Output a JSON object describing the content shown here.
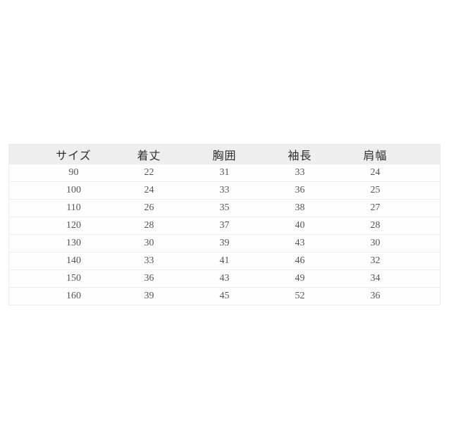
{
  "page": {
    "background": "#ffffff"
  },
  "table": {
    "headers": [
      "サイズ",
      "着丈",
      "胸囲",
      "袖長",
      "肩幅"
    ],
    "rows": [
      [
        "90",
        "22",
        "31",
        "33",
        "24"
      ],
      [
        "100",
        "24",
        "33",
        "36",
        "25"
      ],
      [
        "110",
        "26",
        "35",
        "38",
        "27"
      ],
      [
        "120",
        "28",
        "37",
        "40",
        "28"
      ],
      [
        "130",
        "30",
        "39",
        "43",
        "30"
      ],
      [
        "140",
        "33",
        "41",
        "46",
        "32"
      ],
      [
        "150",
        "36",
        "43",
        "49",
        "34"
      ],
      [
        "160",
        "39",
        "45",
        "52",
        "36"
      ]
    ],
    "colors": {
      "header_bg": "#eeeeee",
      "header_text": "#2e2e2e",
      "cell_text": "#555555",
      "border": "#ededed"
    }
  },
  "chart_data": {
    "type": "table",
    "columns": [
      "サイズ",
      "着丈",
      "胸囲",
      "袖長",
      "肩幅"
    ],
    "rows": [
      [
        90,
        22,
        31,
        33,
        24
      ],
      [
        100,
        24,
        33,
        36,
        25
      ],
      [
        110,
        26,
        35,
        38,
        27
      ],
      [
        120,
        28,
        37,
        40,
        28
      ],
      [
        130,
        30,
        39,
        43,
        30
      ],
      [
        140,
        33,
        41,
        46,
        32
      ],
      [
        150,
        36,
        43,
        49,
        34
      ],
      [
        160,
        39,
        45,
        52,
        36
      ]
    ]
  }
}
